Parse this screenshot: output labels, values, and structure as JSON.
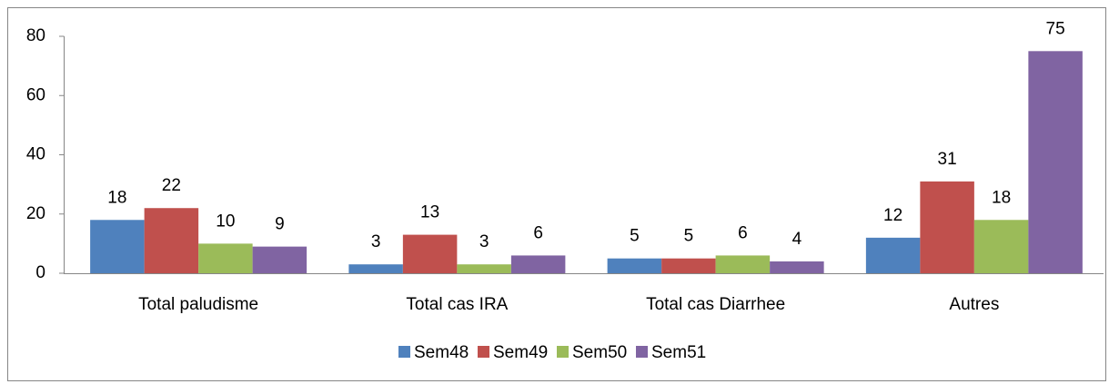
{
  "chart_data": {
    "type": "bar",
    "categories": [
      "Total paludisme",
      "Total cas IRA",
      "Total cas Diarrhee",
      "Autres"
    ],
    "series": [
      {
        "name": "Sem48",
        "color": "#4f81bd",
        "values": [
          18,
          3,
          5,
          12
        ]
      },
      {
        "name": "Sem49",
        "color": "#c0504d",
        "values": [
          22,
          13,
          5,
          31
        ]
      },
      {
        "name": "Sem50",
        "color": "#9bbb59",
        "values": [
          10,
          3,
          6,
          18
        ]
      },
      {
        "name": "Sem51",
        "color": "#8064a2",
        "values": [
          9,
          6,
          4,
          75
        ]
      }
    ],
    "ylim": [
      0,
      80
    ],
    "yticks": [
      0,
      20,
      40,
      60,
      80
    ],
    "grid": false,
    "legend": "bottom"
  }
}
